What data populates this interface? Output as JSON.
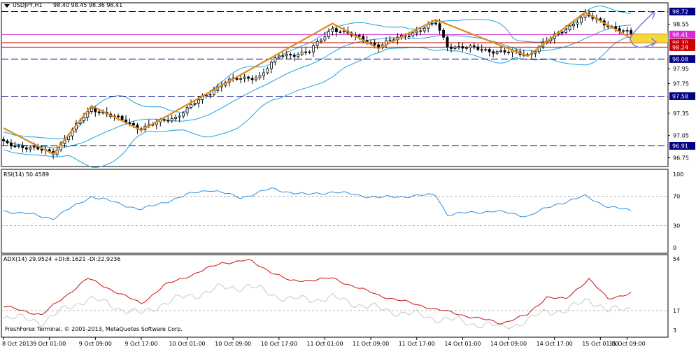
{
  "window": {
    "symbol_title": "USDJPY,H1",
    "ohlc": "98.40 98.45 98.36 98.41",
    "copyright": "FreshForex Terminal, © 2001-2013, MetaQuotes Software Corp."
  },
  "colors": {
    "background": "#ffffff",
    "frame": "#000000",
    "bollinger": "#1fa3e0",
    "zigzag": "#e08b1c",
    "candles": "#000000",
    "support_resistance": "#000080",
    "pink_level": "#d62bd6",
    "red_level": "#cc0000",
    "rsi_line": "#2e8fe0",
    "adx_line": "#cc1111",
    "di_lines": "#c8c8c8",
    "price_tag_blue": "#000080",
    "price_tag_red": "#cc0000",
    "price_tag_pink": "#d62bd6",
    "projection_arrow": "#7b7bd6",
    "current_price_band": "#f2d21a"
  },
  "chart_data": [
    {
      "type": "candlestick",
      "title": "USDJPY,H1",
      "x_tick_labels": [
        "8 Oct 2013",
        "9 Oct 01:00",
        "9 Oct 09:00",
        "9 Oct 17:00",
        "10 Oct 01:00",
        "10 Oct 09:00",
        "10 Oct 17:00",
        "11 Oct 01:00",
        "11 Oct 09:00",
        "11 Oct 17:00",
        "14 Oct 01:00",
        "14 Oct 09:00",
        "14 Oct 17:00",
        "15 Oct 01:00",
        "15 Oct 09:00"
      ],
      "y_tick_labels": [
        "98.72",
        "98.55",
        "98.41",
        "98.30",
        "98.24",
        "98.08",
        "97.95",
        "97.75",
        "97.58",
        "97.35",
        "97.05",
        "96.91",
        "96.75"
      ],
      "ylim": [
        96.67,
        98.8
      ],
      "levels": [
        {
          "label": "98.72",
          "value": 98.72,
          "kind": "dashed-resistance"
        },
        {
          "label": "98.41",
          "value": 98.41,
          "kind": "pink-current"
        },
        {
          "label": "98.30",
          "value": 98.3,
          "kind": "red-level"
        },
        {
          "label": "98.24",
          "value": 98.24,
          "kind": "red-level"
        },
        {
          "label": "98.08",
          "value": 98.08,
          "kind": "dashed-support"
        },
        {
          "label": "97.58",
          "value": 97.58,
          "kind": "dashed-support"
        },
        {
          "label": "96.91",
          "value": 96.91,
          "kind": "dashed-support"
        }
      ],
      "zigzag_points": [
        {
          "bar": 0,
          "price": 97.15
        },
        {
          "bar": 13,
          "price": 96.8
        },
        {
          "bar": 23,
          "price": 97.45
        },
        {
          "bar": 36,
          "price": 97.12
        },
        {
          "bar": 86,
          "price": 98.56
        },
        {
          "bar": 98,
          "price": 98.22
        },
        {
          "bar": 113,
          "price": 98.61
        },
        {
          "bar": 137,
          "price": 98.12
        },
        {
          "bar": 152,
          "price": 98.71
        },
        {
          "bar": 164,
          "price": 98.36
        }
      ],
      "price_path_keypoints": [
        {
          "bar": 0,
          "price": 96.95
        },
        {
          "bar": 13,
          "price": 96.82
        },
        {
          "bar": 23,
          "price": 97.42
        },
        {
          "bar": 36,
          "price": 97.15
        },
        {
          "bar": 45,
          "price": 97.3
        },
        {
          "bar": 58,
          "price": 97.78
        },
        {
          "bar": 67,
          "price": 97.85
        },
        {
          "bar": 72,
          "price": 98.12
        },
        {
          "bar": 80,
          "price": 98.18
        },
        {
          "bar": 86,
          "price": 98.5
        },
        {
          "bar": 98,
          "price": 98.26
        },
        {
          "bar": 113,
          "price": 98.56
        },
        {
          "bar": 116,
          "price": 98.26
        },
        {
          "bar": 137,
          "price": 98.14
        },
        {
          "bar": 152,
          "price": 98.67
        },
        {
          "bar": 164,
          "price": 98.41
        }
      ]
    },
    {
      "type": "line",
      "title": "RSI(14) 50.4589",
      "y_tick_labels": [
        "100",
        "70",
        "30",
        "0"
      ],
      "ylim": [
        0,
        100
      ],
      "levels": [
        70,
        30
      ],
      "keypoints": [
        {
          "bar": 0,
          "value": 50
        },
        {
          "bar": 5,
          "value": 47
        },
        {
          "bar": 13,
          "value": 40
        },
        {
          "bar": 23,
          "value": 70
        },
        {
          "bar": 36,
          "value": 52
        },
        {
          "bar": 50,
          "value": 75
        },
        {
          "bar": 54,
          "value": 79
        },
        {
          "bar": 62,
          "value": 68
        },
        {
          "bar": 70,
          "value": 80
        },
        {
          "bar": 79,
          "value": 72
        },
        {
          "bar": 86,
          "value": 76
        },
        {
          "bar": 98,
          "value": 68
        },
        {
          "bar": 113,
          "value": 72
        },
        {
          "bar": 116,
          "value": 45
        },
        {
          "bar": 128,
          "value": 50
        },
        {
          "bar": 137,
          "value": 43
        },
        {
          "bar": 145,
          "value": 60
        },
        {
          "bar": 152,
          "value": 70
        },
        {
          "bar": 158,
          "value": 56
        },
        {
          "bar": 164,
          "value": 50
        }
      ]
    },
    {
      "type": "line",
      "title": "ADX(14) 29.9524 +DI:8.1621 -DI:22.9236",
      "y_tick_labels": [
        "54",
        "17",
        "3"
      ],
      "ylim": [
        3,
        54
      ],
      "levels": [
        17
      ],
      "keypoints": [
        {
          "bar": 0,
          "value": 20
        },
        {
          "bar": 10,
          "value": 14
        },
        {
          "bar": 22,
          "value": 40
        },
        {
          "bar": 36,
          "value": 22
        },
        {
          "bar": 42,
          "value": 35
        },
        {
          "bar": 57,
          "value": 51
        },
        {
          "bar": 64,
          "value": 53
        },
        {
          "bar": 75,
          "value": 38
        },
        {
          "bar": 86,
          "value": 40
        },
        {
          "bar": 98,
          "value": 28
        },
        {
          "bar": 113,
          "value": 18
        },
        {
          "bar": 130,
          "value": 8
        },
        {
          "bar": 137,
          "value": 14
        },
        {
          "bar": 142,
          "value": 27
        },
        {
          "bar": 147,
          "value": 25
        },
        {
          "bar": 153,
          "value": 40
        },
        {
          "bar": 158,
          "value": 25
        },
        {
          "bar": 164,
          "value": 30
        }
      ]
    }
  ]
}
